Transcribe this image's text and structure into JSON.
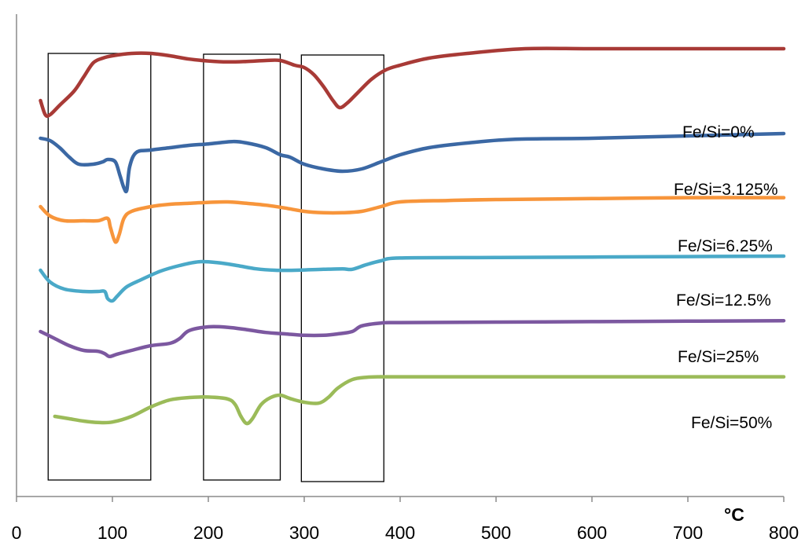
{
  "chart_data": {
    "type": "line",
    "xlabel": "°C",
    "xlim": [
      0,
      800
    ],
    "x_ticks": [
      "0",
      "100",
      "200",
      "300",
      "400",
      "500",
      "600",
      "700",
      "800"
    ],
    "grid": false,
    "series": [
      {
        "name": "Fe/Si=0%",
        "color": "#a83a36",
        "points": [
          [
            25,
            0.82
          ],
          [
            30,
            0.79
          ],
          [
            35,
            0.79
          ],
          [
            45,
            0.81
          ],
          [
            60,
            0.84
          ],
          [
            70,
            0.87
          ],
          [
            80,
            0.9
          ],
          [
            90,
            0.91
          ],
          [
            100,
            0.915
          ],
          [
            120,
            0.92
          ],
          [
            140,
            0.92
          ],
          [
            160,
            0.915
          ],
          [
            180,
            0.908
          ],
          [
            200,
            0.904
          ],
          [
            220,
            0.902
          ],
          [
            240,
            0.903
          ],
          [
            260,
            0.905
          ],
          [
            275,
            0.905
          ],
          [
            290,
            0.895
          ],
          [
            300,
            0.89
          ],
          [
            310,
            0.875
          ],
          [
            320,
            0.85
          ],
          [
            330,
            0.82
          ],
          [
            337,
            0.805
          ],
          [
            345,
            0.815
          ],
          [
            355,
            0.835
          ],
          [
            370,
            0.865
          ],
          [
            385,
            0.885
          ],
          [
            400,
            0.895
          ],
          [
            430,
            0.91
          ],
          [
            470,
            0.92
          ],
          [
            530,
            0.93
          ],
          [
            600,
            0.93
          ],
          [
            700,
            0.93
          ],
          [
            800,
            0.93
          ]
        ]
      },
      {
        "name": "Fe/Si=3.125%",
        "color": "#3b68a4",
        "points": [
          [
            25,
            0.74
          ],
          [
            35,
            0.735
          ],
          [
            45,
            0.72
          ],
          [
            55,
            0.7
          ],
          [
            65,
            0.685
          ],
          [
            80,
            0.685
          ],
          [
            90,
            0.69
          ],
          [
            95,
            0.695
          ],
          [
            103,
            0.69
          ],
          [
            108,
            0.66
          ],
          [
            112,
            0.635
          ],
          [
            115,
            0.63
          ],
          [
            118,
            0.68
          ],
          [
            125,
            0.71
          ],
          [
            140,
            0.715
          ],
          [
            160,
            0.72
          ],
          [
            180,
            0.725
          ],
          [
            200,
            0.728
          ],
          [
            225,
            0.733
          ],
          [
            240,
            0.73
          ],
          [
            260,
            0.72
          ],
          [
            275,
            0.705
          ],
          [
            285,
            0.7
          ],
          [
            300,
            0.685
          ],
          [
            320,
            0.675
          ],
          [
            340,
            0.67
          ],
          [
            360,
            0.675
          ],
          [
            380,
            0.69
          ],
          [
            400,
            0.705
          ],
          [
            430,
            0.72
          ],
          [
            470,
            0.73
          ],
          [
            520,
            0.738
          ],
          [
            600,
            0.74
          ],
          [
            700,
            0.745
          ],
          [
            800,
            0.75
          ]
        ]
      },
      {
        "name": "Fe/Si=6.25%",
        "color": "#f7953b",
        "points": [
          [
            25,
            0.595
          ],
          [
            35,
            0.575
          ],
          [
            50,
            0.565
          ],
          [
            70,
            0.565
          ],
          [
            85,
            0.565
          ],
          [
            95,
            0.57
          ],
          [
            98,
            0.55
          ],
          [
            103,
            0.52
          ],
          [
            107,
            0.535
          ],
          [
            112,
            0.57
          ],
          [
            120,
            0.585
          ],
          [
            140,
            0.595
          ],
          [
            160,
            0.6
          ],
          [
            180,
            0.602
          ],
          [
            200,
            0.604
          ],
          [
            220,
            0.605
          ],
          [
            240,
            0.602
          ],
          [
            260,
            0.598
          ],
          [
            280,
            0.592
          ],
          [
            300,
            0.585
          ],
          [
            320,
            0.582
          ],
          [
            340,
            0.582
          ],
          [
            360,
            0.585
          ],
          [
            380,
            0.595
          ],
          [
            400,
            0.605
          ],
          [
            450,
            0.608
          ],
          [
            500,
            0.61
          ],
          [
            600,
            0.612
          ],
          [
            700,
            0.614
          ],
          [
            800,
            0.614
          ]
        ]
      },
      {
        "name": "Fe/Si=12.5%",
        "color": "#4aa9c8",
        "points": [
          [
            25,
            0.46
          ],
          [
            35,
            0.435
          ],
          [
            50,
            0.42
          ],
          [
            70,
            0.415
          ],
          [
            85,
            0.415
          ],
          [
            92,
            0.415
          ],
          [
            95,
            0.4
          ],
          [
            100,
            0.395
          ],
          [
            105,
            0.405
          ],
          [
            115,
            0.425
          ],
          [
            130,
            0.44
          ],
          [
            150,
            0.458
          ],
          [
            170,
            0.47
          ],
          [
            190,
            0.478
          ],
          [
            210,
            0.476
          ],
          [
            230,
            0.47
          ],
          [
            250,
            0.463
          ],
          [
            270,
            0.46
          ],
          [
            290,
            0.46
          ],
          [
            320,
            0.462
          ],
          [
            340,
            0.463
          ],
          [
            350,
            0.462
          ],
          [
            365,
            0.472
          ],
          [
            380,
            0.48
          ],
          [
            400,
            0.486
          ],
          [
            500,
            0.487
          ],
          [
            600,
            0.488
          ],
          [
            700,
            0.489
          ],
          [
            800,
            0.49
          ]
        ]
      },
      {
        "name": "Fe/Si=25%",
        "color": "#7c58a0",
        "points": [
          [
            25,
            0.33
          ],
          [
            40,
            0.315
          ],
          [
            55,
            0.3
          ],
          [
            70,
            0.29
          ],
          [
            85,
            0.288
          ],
          [
            92,
            0.283
          ],
          [
            97,
            0.277
          ],
          [
            105,
            0.282
          ],
          [
            120,
            0.29
          ],
          [
            140,
            0.3
          ],
          [
            160,
            0.305
          ],
          [
            170,
            0.315
          ],
          [
            180,
            0.332
          ],
          [
            200,
            0.34
          ],
          [
            220,
            0.339
          ],
          [
            240,
            0.334
          ],
          [
            260,
            0.328
          ],
          [
            280,
            0.325
          ],
          [
            300,
            0.322
          ],
          [
            320,
            0.322
          ],
          [
            335,
            0.325
          ],
          [
            350,
            0.33
          ],
          [
            360,
            0.342
          ],
          [
            380,
            0.348
          ],
          [
            400,
            0.349
          ],
          [
            500,
            0.35
          ],
          [
            600,
            0.351
          ],
          [
            700,
            0.352
          ],
          [
            800,
            0.353
          ]
        ]
      },
      {
        "name": "Fe/Si=50%",
        "color": "#9bbb59",
        "points": [
          [
            40,
            0.15
          ],
          [
            55,
            0.145
          ],
          [
            70,
            0.14
          ],
          [
            85,
            0.137
          ],
          [
            100,
            0.138
          ],
          [
            120,
            0.15
          ],
          [
            140,
            0.17
          ],
          [
            160,
            0.185
          ],
          [
            180,
            0.19
          ],
          [
            200,
            0.191
          ],
          [
            220,
            0.187
          ],
          [
            228,
            0.175
          ],
          [
            234,
            0.15
          ],
          [
            240,
            0.135
          ],
          [
            246,
            0.145
          ],
          [
            255,
            0.175
          ],
          [
            265,
            0.19
          ],
          [
            275,
            0.195
          ],
          [
            285,
            0.188
          ],
          [
            300,
            0.18
          ],
          [
            315,
            0.178
          ],
          [
            325,
            0.19
          ],
          [
            335,
            0.21
          ],
          [
            350,
            0.228
          ],
          [
            365,
            0.233
          ],
          [
            380,
            0.234
          ],
          [
            400,
            0.234
          ],
          [
            600,
            0.234
          ],
          [
            800,
            0.234
          ]
        ]
      }
    ],
    "highlight_boxes": [
      {
        "x_range": [
          33,
          140
        ]
      },
      {
        "x_range": [
          195,
          275
        ]
      },
      {
        "x_range": [
          297,
          383
        ]
      }
    ]
  }
}
